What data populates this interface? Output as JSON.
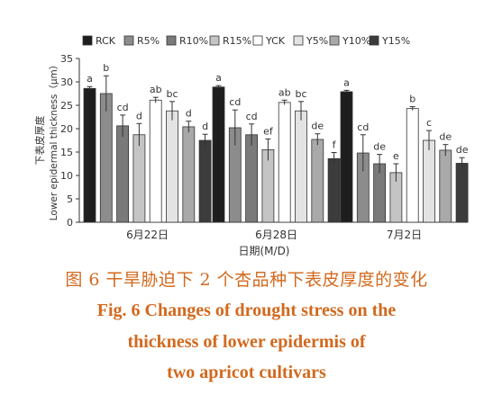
{
  "chart_data": {
    "type": "bar",
    "ylabel_cn": "下表皮厚度",
    "ylabel_en": "Lower epidermal thickness（μm）",
    "xlabel": "日期(M/D)",
    "ylim": [
      0,
      35
    ],
    "yticks": [
      0,
      5,
      10,
      15,
      20,
      25,
      30,
      35
    ],
    "grid": false,
    "legend_position": "top",
    "categories": [
      "6月22日",
      "6月28日",
      "7月2日"
    ],
    "series": [
      {
        "name": "RCK",
        "color": "#1e1e1e",
        "values": [
          28.6,
          28.9,
          27.9
        ],
        "errors": [
          0.4,
          0.3,
          0.3
        ],
        "letters": [
          "a",
          "a",
          "a"
        ]
      },
      {
        "name": "R5%",
        "color": "#8c8c8c",
        "values": [
          27.5,
          20.2,
          14.8
        ],
        "errors": [
          3.8,
          3.8,
          3.9
        ],
        "letters": [
          "b",
          "cd",
          "cd"
        ]
      },
      {
        "name": "R10%",
        "color": "#7a7a7a",
        "values": [
          20.6,
          18.7,
          12.5
        ],
        "errors": [
          2.3,
          2.3,
          2.0
        ],
        "letters": [
          "cd",
          "cd",
          "de"
        ]
      },
      {
        "name": "R15%",
        "color": "#c4c4c4",
        "values": [
          18.7,
          15.5,
          10.6
        ],
        "errors": [
          2.4,
          2.3,
          1.9
        ],
        "letters": [
          "d",
          "ef",
          "e"
        ]
      },
      {
        "name": "YCK",
        "color": "#ffffff",
        "values": [
          26.1,
          25.6,
          24.3
        ],
        "errors": [
          0.6,
          0.5,
          0.4
        ],
        "letters": [
          "ab",
          "ab",
          "b"
        ]
      },
      {
        "name": "Y5%",
        "color": "#e3e3e3",
        "values": [
          23.8,
          23.8,
          17.5
        ],
        "errors": [
          2.0,
          2.0,
          2.1
        ],
        "letters": [
          "bc",
          "bc",
          "c"
        ]
      },
      {
        "name": "Y10%",
        "color": "#a9a9a9",
        "values": [
          20.4,
          17.7,
          15.4
        ],
        "errors": [
          1.2,
          1.2,
          1.2
        ],
        "letters": [
          "d",
          "de",
          "de"
        ]
      },
      {
        "name": "Y15%",
        "color": "#3c3c3c",
        "values": [
          17.5,
          13.6,
          12.6
        ],
        "errors": [
          1.3,
          1.3,
          1.2
        ],
        "letters": [
          "d",
          "f",
          "de"
        ]
      }
    ]
  },
  "caption": {
    "cn": "图 6    干旱胁迫下 2 个杏品种下表皮厚度的变化",
    "en_line1": "Fig. 6    Changes of drought stress on the",
    "en_line2": "thickness of lower epidermis of",
    "en_line3": "two apricot cultivars"
  }
}
